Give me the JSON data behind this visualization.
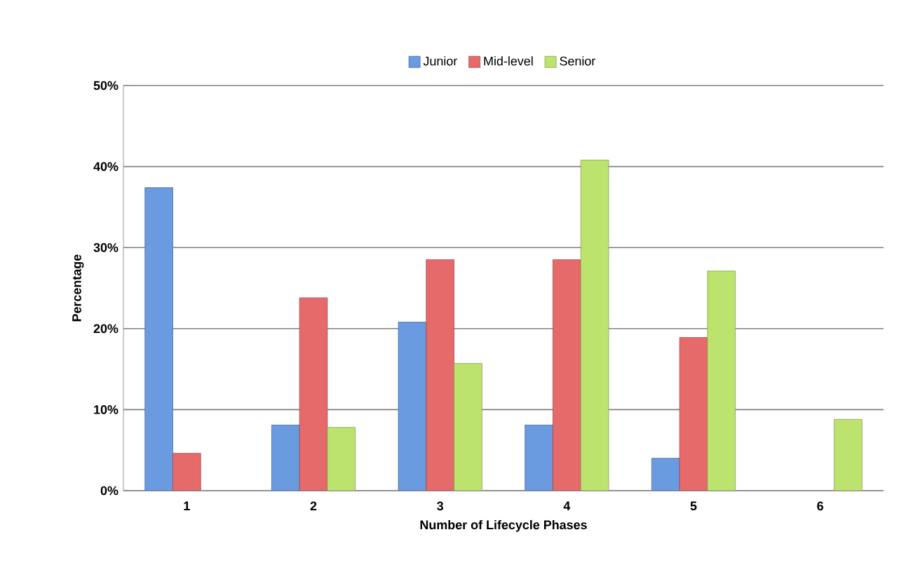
{
  "chart_data": {
    "type": "bar",
    "xlabel": "Number of Lifecycle Phases",
    "ylabel": "Percentage",
    "categories": [
      "1",
      "2",
      "3",
      "4",
      "5",
      "6"
    ],
    "series": [
      {
        "name": "Junior",
        "color": "#6a9ae0",
        "values": [
          37.4,
          8.1,
          20.8,
          8.1,
          4.0,
          null
        ]
      },
      {
        "name": "Mid-level",
        "color": "#e66a6a",
        "values": [
          4.6,
          23.8,
          28.5,
          28.5,
          18.9,
          null
        ]
      },
      {
        "name": "Senior",
        "color": "#bde36f",
        "values": [
          null,
          7.8,
          15.7,
          40.8,
          27.1,
          8.8
        ]
      }
    ],
    "ylim": [
      0,
      50
    ],
    "yticks": [
      {
        "value": 0,
        "label": "0%"
      },
      {
        "value": 10,
        "label": "10%"
      },
      {
        "value": 20,
        "label": "20%"
      },
      {
        "value": 30,
        "label": "30%"
      },
      {
        "value": 40,
        "label": "40%"
      },
      {
        "value": 50,
        "label": "50%"
      }
    ],
    "grid": "y",
    "legend": "top"
  }
}
